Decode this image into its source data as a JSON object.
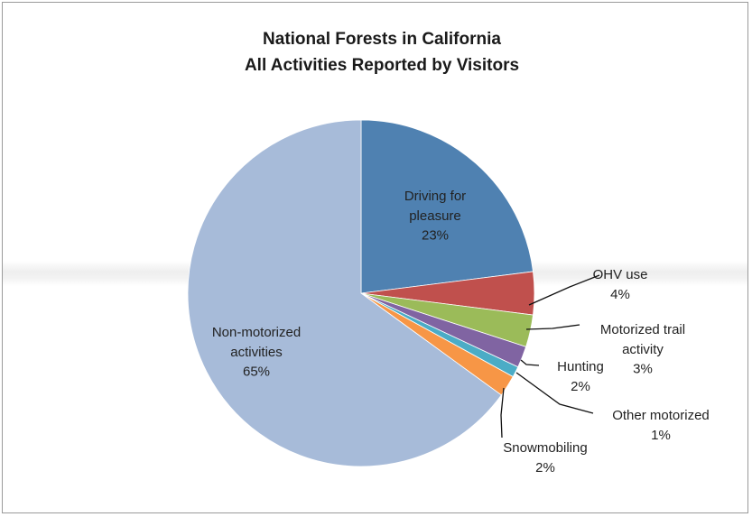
{
  "chart_data": {
    "type": "pie",
    "title": [
      "National Forests in California",
      "All Activities Reported by Visitors"
    ],
    "slices": [
      {
        "label": [
          "Driving for",
          "pleasure"
        ],
        "value": 23,
        "value_label": "23%",
        "color": "#4f81b1"
      },
      {
        "label": [
          "OHV use"
        ],
        "value": 4,
        "value_label": "4%",
        "color": "#c0504d"
      },
      {
        "label": [
          "Motorized trail",
          "activity"
        ],
        "value": 3,
        "value_label": "3%",
        "color": "#9bbb59"
      },
      {
        "label": [
          "Hunting"
        ],
        "value": 2,
        "value_label": "2%",
        "color": "#8064a2"
      },
      {
        "label": [
          "Other motorized"
        ],
        "value": 1,
        "value_label": "1%",
        "color": "#4bacc6"
      },
      {
        "label": [
          "Snowmobiling"
        ],
        "value": 2,
        "value_label": "2%",
        "color": "#f79646"
      },
      {
        "label": [
          "Non-motorized",
          "activities"
        ],
        "value": 65,
        "value_label": "65%",
        "color": "#a7bbd9"
      }
    ]
  }
}
